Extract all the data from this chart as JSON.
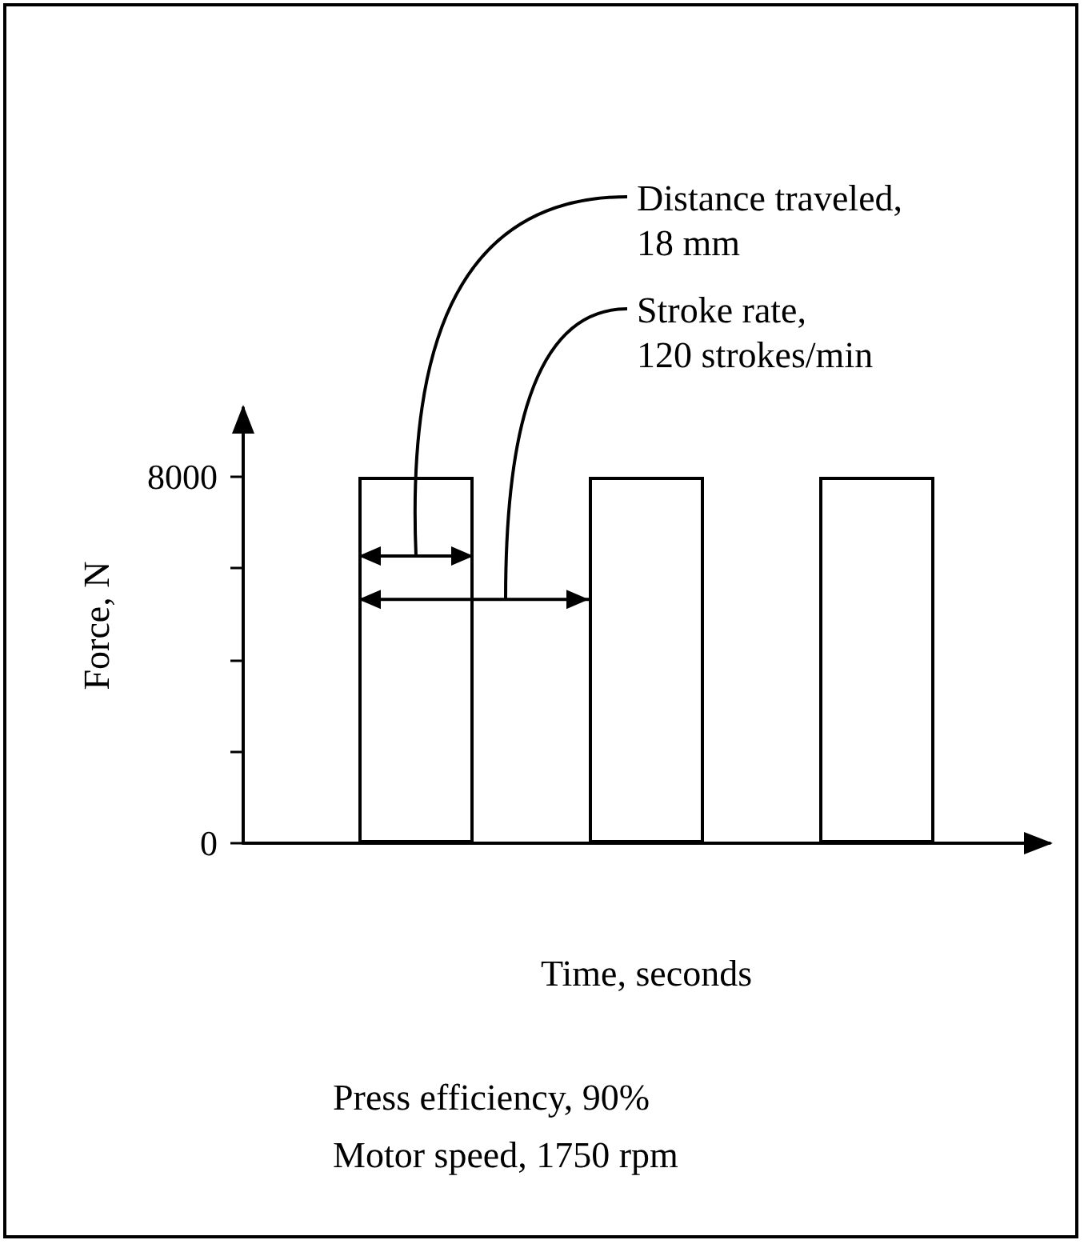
{
  "chart_data": {
    "type": "bar",
    "xlabel": "Time, seconds",
    "ylabel": "Force, N",
    "categories": [
      null,
      null,
      null,
      null,
      null,
      null,
      null
    ],
    "values": [
      null,
      8000,
      null,
      8000,
      null,
      8000,
      null
    ],
    "color": "#000000",
    "ylim": [
      0,
      9500
    ],
    "yticks": [
      0,
      {
        "value": 2000,
        "label": null
      },
      {
        "value": 4000,
        "label": null
      },
      {
        "value": 6000,
        "label": null
      },
      8000
    ],
    "tick_labels": "y",
    "grid": false,
    "annotations": [
      "Distance traveled,\n18 mm",
      "Stroke rate,\n120 strokes/min",
      "Press efficiency, 90%",
      "Motor speed, 1750 rpm"
    ]
  }
}
